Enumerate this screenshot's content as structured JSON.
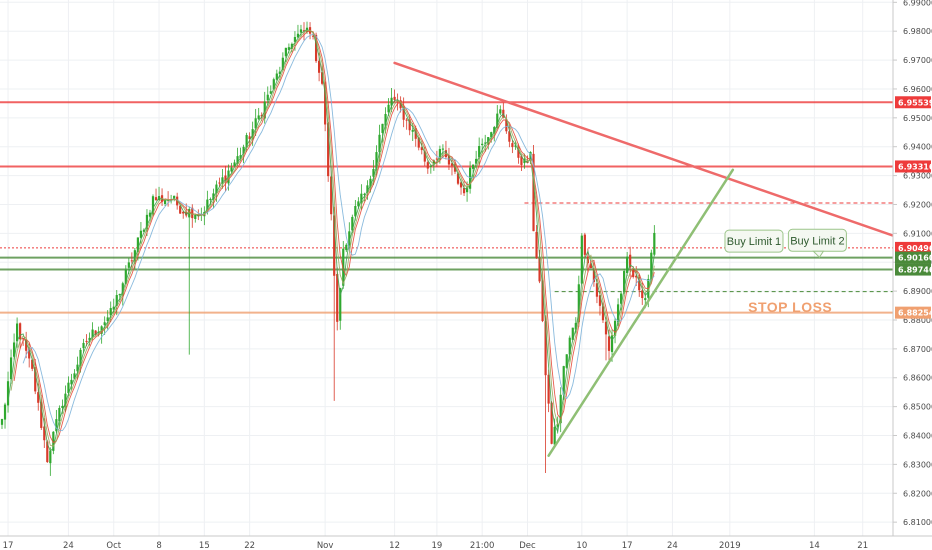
{
  "chart_data": {
    "type": "candlestick",
    "y_range": [
      6.8052,
      6.9908
    ],
    "grid": true,
    "y_ticks": [
      "6.99000",
      "6.98000",
      "6.97000",
      "6.96000",
      "6.95000",
      "6.94000",
      "6.93000",
      "6.92000",
      "6.91000",
      "6.90000",
      "6.89000",
      "6.88000",
      "6.87000",
      "6.86000",
      "6.85000",
      "6.84000",
      "6.83000",
      "6.82000",
      "6.81000"
    ],
    "x_ticks": [
      {
        "label": "17",
        "bar": 2
      },
      {
        "label": "24",
        "bar": 22
      },
      {
        "label": "Oct",
        "bar": 37
      },
      {
        "label": "8",
        "bar": 52
      },
      {
        "label": "15",
        "bar": 67
      },
      {
        "label": "22",
        "bar": 82
      },
      {
        "label": "Nov",
        "bar": 107
      },
      {
        "label": "12",
        "bar": 130
      },
      {
        "label": "19",
        "bar": 144
      },
      {
        "label": "21:00",
        "bar": 159
      },
      {
        "label": "Dec",
        "bar": 174
      },
      {
        "label": "10",
        "bar": 192
      },
      {
        "label": "17",
        "bar": 207
      },
      {
        "label": "24",
        "bar": 222
      },
      {
        "label": "2019",
        "bar": 241
      },
      {
        "label": "14",
        "bar": 269
      },
      {
        "label": "21",
        "bar": 285
      }
    ],
    "price_path": [
      [
        0,
        6.845
      ],
      [
        5,
        6.878
      ],
      [
        10,
        6.862
      ],
      [
        15,
        6.832
      ],
      [
        20,
        6.852
      ],
      [
        28,
        6.873
      ],
      [
        36,
        6.882
      ],
      [
        44,
        6.904
      ],
      [
        50,
        6.922
      ],
      [
        56,
        6.922
      ],
      [
        60,
        6.918
      ],
      [
        66,
        6.917
      ],
      [
        72,
        6.927
      ],
      [
        78,
        6.936
      ],
      [
        84,
        6.948
      ],
      [
        90,
        6.962
      ],
      [
        96,
        6.977
      ],
      [
        102,
        6.981
      ],
      [
        106,
        6.962
      ],
      [
        109,
        6.915
      ],
      [
        111,
        6.878
      ],
      [
        113,
        6.905
      ],
      [
        117,
        6.918
      ],
      [
        121,
        6.925
      ],
      [
        125,
        6.944
      ],
      [
        129,
        6.957
      ],
      [
        133,
        6.951
      ],
      [
        137,
        6.943
      ],
      [
        141,
        6.933
      ],
      [
        145,
        6.939
      ],
      [
        149,
        6.932
      ],
      [
        153,
        6.924
      ],
      [
        157,
        6.938
      ],
      [
        161,
        6.945
      ],
      [
        165,
        6.952
      ],
      [
        169,
        6.94
      ],
      [
        173,
        6.934
      ],
      [
        175,
        6.936
      ],
      [
        176,
        6.912
      ],
      [
        178,
        6.893
      ],
      [
        180,
        6.862
      ],
      [
        182,
        6.838
      ],
      [
        184,
        6.845
      ],
      [
        186,
        6.863
      ],
      [
        188,
        6.873
      ],
      [
        190,
        6.88
      ],
      [
        192,
        6.908
      ],
      [
        195,
        6.898
      ],
      [
        198,
        6.884
      ],
      [
        201,
        6.87
      ],
      [
        204,
        6.885
      ],
      [
        207,
        6.9
      ],
      [
        210,
        6.893
      ],
      [
        213,
        6.888
      ],
      [
        216,
        6.908
      ]
    ],
    "spikes": [
      {
        "bar": 110,
        "low": 6.852
      },
      {
        "bar": 62,
        "low": 6.868
      },
      {
        "bar": 16,
        "low": 6.826
      },
      {
        "bar": 180,
        "low": 6.827
      },
      {
        "bar": 200,
        "low": 6.866
      }
    ],
    "moving_averages": [
      {
        "period": 2,
        "color": "#3fa34d"
      },
      {
        "period": 4,
        "color": "#e64a3a"
      },
      {
        "period": 7,
        "color": "#7cb3d9"
      },
      {
        "period": 3,
        "color": "#9aa85a"
      }
    ],
    "horizontal_levels": [
      {
        "price": 6.95539,
        "label": "6.95539",
        "color": "#ee3b3b",
        "style": "solid",
        "badge": true
      },
      {
        "price": 6.93316,
        "label": "6.93316",
        "color": "#ee3b3b",
        "style": "solid",
        "badge": true
      },
      {
        "price": 6.9205,
        "color": "#ee3b3b",
        "style": "dashed",
        "from_bar": 173,
        "badge": false
      },
      {
        "price": 6.90496,
        "label": "6.90496",
        "color": "#ee3b3b",
        "style": "dotted",
        "badge": true
      },
      {
        "price": 6.9016,
        "label": "6.90160",
        "color": "#4a8a3a",
        "style": "solid",
        "badge": true
      },
      {
        "price": 6.89746,
        "label": "6.89746",
        "color": "#4a8a3a",
        "style": "solid",
        "badge": true
      },
      {
        "price": 6.8898,
        "color": "#4a8a3a",
        "style": "dashed",
        "from_bar": 183,
        "badge": false
      },
      {
        "price": 6.88254,
        "label": "6.88254",
        "color": "#f0a070",
        "style": "solid",
        "badge": true
      }
    ],
    "trendlines": [
      {
        "from": {
          "bar": 130,
          "price": 6.969
        },
        "to": {
          "bar": 297,
          "price": 6.9085
        },
        "color": "#ee6a6a"
      },
      {
        "from": {
          "bar": 181,
          "price": 6.833
        },
        "to": {
          "bar": 242,
          "price": 6.932
        },
        "color": "#8fbf75"
      }
    ],
    "annotations": [
      {
        "text": "Buy Limit 1",
        "bar": 249,
        "price": 6.9073
      },
      {
        "text": "Buy Limit 2",
        "bar": 270,
        "price": 6.9076
      },
      {
        "text": "STOP LOSS",
        "bar": 261,
        "price": 6.8845
      }
    ]
  }
}
